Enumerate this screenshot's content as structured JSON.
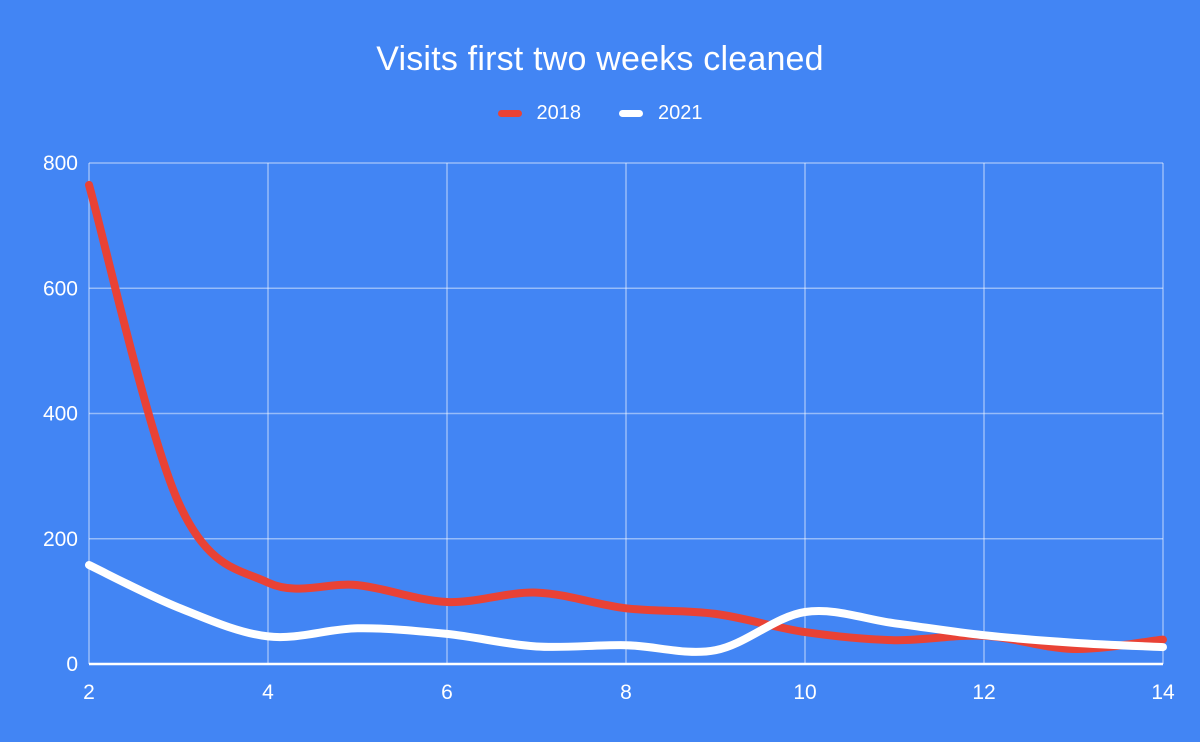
{
  "colors": {
    "background": "#4285f4",
    "series_2018": "#e94235",
    "series_2021": "#ffffff",
    "gridline": "rgba(255,255,255,0.45)",
    "axis_line": "#ffffff",
    "text": "#ffffff"
  },
  "chart_data": {
    "type": "line",
    "smooth": true,
    "title": "Visits first two weeks cleaned",
    "xlabel": "",
    "ylabel": "",
    "x": [
      2,
      3,
      4,
      5,
      6,
      7,
      8,
      9,
      10,
      11,
      12,
      13,
      14
    ],
    "series": [
      {
        "name": "2018",
        "color": "#e94235",
        "values": [
          765,
          258,
          130,
          126,
          99,
          114,
          89,
          80,
          51,
          38,
          45,
          24,
          39
        ]
      },
      {
        "name": "2021",
        "color": "#ffffff",
        "values": [
          158,
          90,
          44,
          57,
          48,
          28,
          30,
          22,
          83,
          65,
          46,
          34,
          27
        ]
      }
    ],
    "x_ticks": [
      2,
      4,
      6,
      8,
      10,
      12,
      14
    ],
    "y_ticks": [
      0,
      200,
      400,
      600,
      800
    ],
    "xlim": [
      2,
      14
    ],
    "ylim": [
      0,
      800
    ],
    "grid": true,
    "legend_position": "top"
  }
}
